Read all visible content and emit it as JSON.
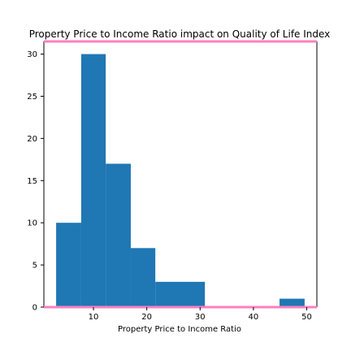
{
  "chart_data": {
    "type": "bar",
    "subtype": "histogram",
    "title": "Property Price to Income Ratio impact on Quality of Life Index",
    "xlabel": "Property Price to Income Ratio",
    "ylabel": "",
    "bins": [
      {
        "x0": 3.0,
        "x1": 7.7,
        "count": 10
      },
      {
        "x0": 7.7,
        "x1": 12.3,
        "count": 30
      },
      {
        "x0": 12.3,
        "x1": 17.0,
        "count": 17
      },
      {
        "x0": 17.0,
        "x1": 21.6,
        "count": 7
      },
      {
        "x0": 21.6,
        "x1": 26.3,
        "count": 3
      },
      {
        "x0": 26.3,
        "x1": 30.9,
        "count": 3
      },
      {
        "x0": 30.9,
        "x1": 35.6,
        "count": 0
      },
      {
        "x0": 35.6,
        "x1": 40.2,
        "count": 0
      },
      {
        "x0": 40.2,
        "x1": 44.9,
        "count": 0
      },
      {
        "x0": 44.9,
        "x1": 49.6,
        "count": 1
      }
    ],
    "xlim": [
      0.7,
      51.9
    ],
    "ylim": [
      0,
      31.5
    ],
    "xticks": [
      10,
      20,
      30,
      40,
      50
    ],
    "yticks": [
      0,
      5,
      10,
      15,
      20,
      25,
      30
    ],
    "grid": false,
    "colors": {
      "bar": "#1f77b4",
      "frame": "#000000",
      "highlight_line": "#ff7fbf"
    }
  }
}
